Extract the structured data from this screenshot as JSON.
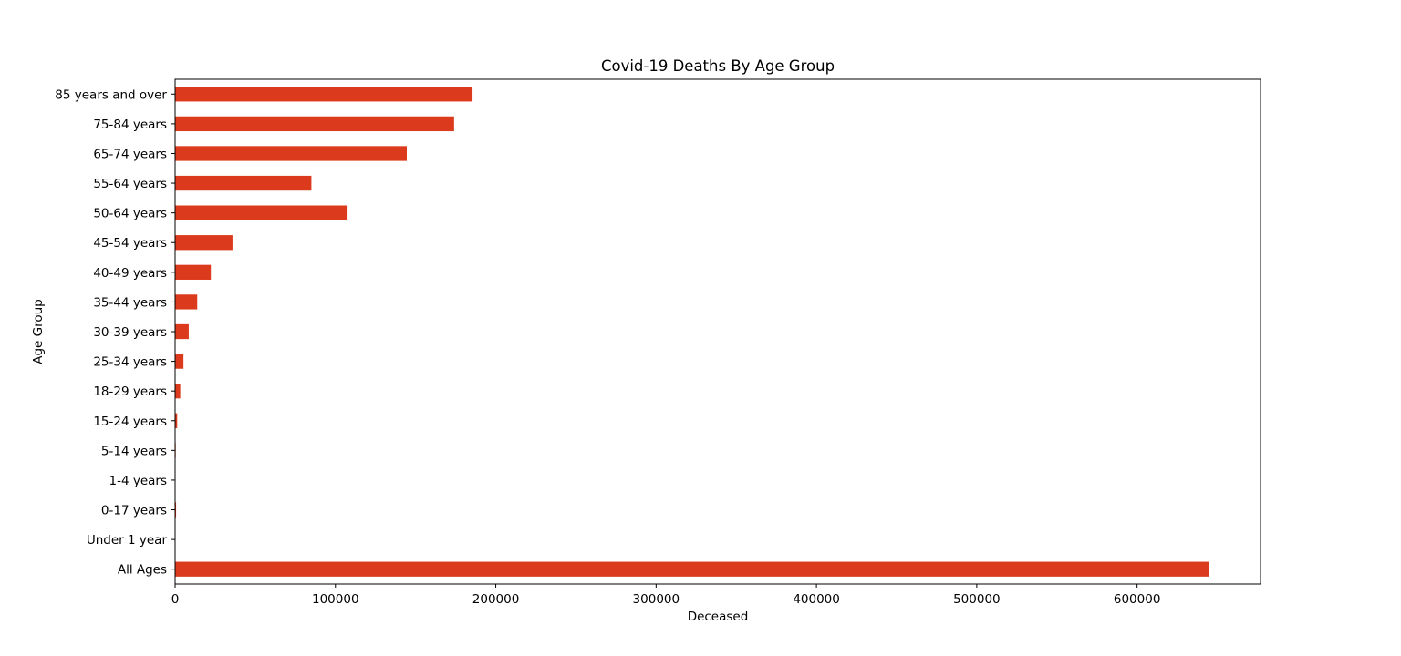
{
  "chart_data": {
    "type": "bar",
    "orientation": "horizontal",
    "title": "Covid-19 Deaths By Age Group",
    "xlabel": "Deceased",
    "ylabel": "Age Group",
    "categories": [
      "All Ages",
      "Under 1 year",
      "0-17 years",
      "1-4 years",
      "5-14 years",
      "15-24 years",
      "18-29 years",
      "25-34 years",
      "30-39 years",
      "35-44 years",
      "40-49 years",
      "45-54 years",
      "50-64 years",
      "55-64 years",
      "65-74 years",
      "75-84 years",
      "85 years and over"
    ],
    "values": [
      645000,
      200,
      600,
      150,
      400,
      1300,
      3200,
      5200,
      8500,
      13800,
      22300,
      35800,
      107000,
      85000,
      144500,
      174000,
      185500
    ],
    "xlim": [
      0,
      677000
    ],
    "xticks": [
      0,
      100000,
      200000,
      300000,
      400000,
      500000,
      600000
    ],
    "xtick_labels": [
      "0",
      "100000",
      "200000",
      "300000",
      "400000",
      "500000",
      "600000"
    ],
    "bar_color": "#dc3a1c",
    "grid": false,
    "legend": "none"
  }
}
